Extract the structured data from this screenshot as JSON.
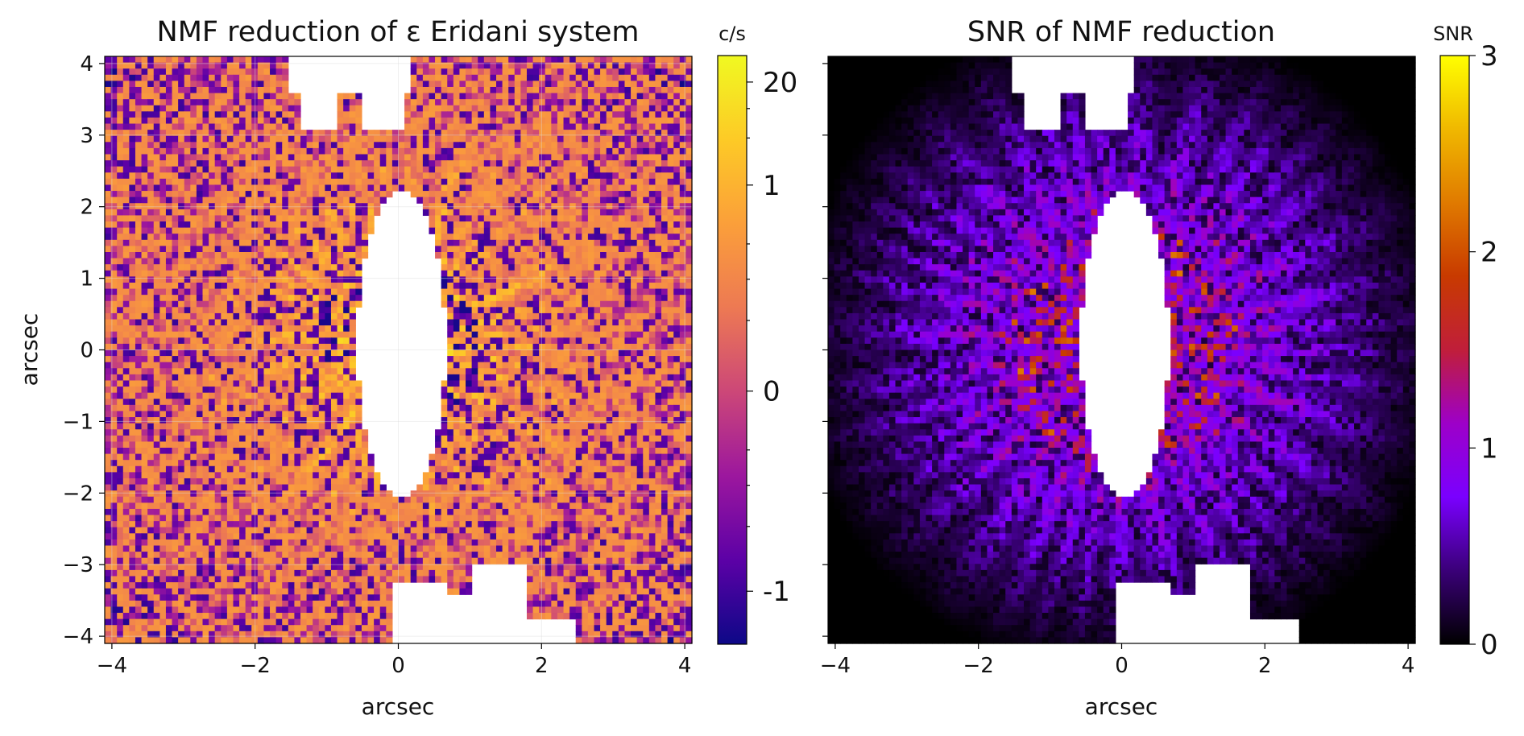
{
  "chart_data": [
    {
      "type": "heatmap",
      "title": "NMF reduction of ε Eridani system",
      "xlabel": "arcsec",
      "ylabel": "arcsec",
      "xlim": [
        -4.1,
        4.1
      ],
      "ylim": [
        -4.1,
        4.1
      ],
      "x_ticks": [
        -4,
        -2,
        0,
        2,
        4
      ],
      "x_tick_labels": [
        "−4",
        "−2",
        "0",
        "2",
        "4"
      ],
      "y_ticks": [
        4,
        3,
        2,
        1,
        0,
        -1,
        -2,
        -3,
        -4
      ],
      "y_tick_labels": [
        "4",
        "3",
        "2",
        "1",
        "0",
        "−1",
        "−2",
        "−3",
        "−4"
      ],
      "grid": true,
      "colormap": "plasma",
      "colorbar": {
        "label": "c/s",
        "tick_labels": [
          "20",
          "1",
          "0",
          "-1"
        ],
        "tick_fractions": [
          0.955,
          0.78,
          0.43,
          0.09
        ],
        "colors": [
          "#0d0887",
          "#5c01a6",
          "#9c179e",
          "#cc4778",
          "#ed7953",
          "#fb9f3a",
          "#fdca26",
          "#f0f921"
        ]
      },
      "nan_color": "#ffffff"
    },
    {
      "type": "heatmap",
      "title": "SNR of NMF reduction",
      "xlabel": "arcsec",
      "ylabel": "",
      "xlim": [
        -4.1,
        4.1
      ],
      "ylim": [
        -4.1,
        4.1
      ],
      "x_ticks": [
        -4,
        -2,
        0,
        2,
        4
      ],
      "x_tick_labels": [
        "−4",
        "−2",
        "0",
        "2",
        "4"
      ],
      "y_ticks": [
        4,
        3,
        2,
        1,
        0,
        -1,
        -2,
        -3,
        -4
      ],
      "y_tick_labels": [],
      "grid": false,
      "colormap": "gnuplot",
      "colorbar": {
        "label": "SNR",
        "range": [
          0,
          3
        ],
        "tick_values": [
          0,
          1,
          2,
          3
        ],
        "tick_labels": [
          "0",
          "1",
          "2",
          "3"
        ],
        "colors": [
          "#000000",
          "#3a0078",
          "#7a00ff",
          "#9d00c8",
          "#c01e3a",
          "#c83a00",
          "#e07a00",
          "#f0b800",
          "#ffff00"
        ]
      },
      "nan_color": "#ffffff"
    }
  ]
}
